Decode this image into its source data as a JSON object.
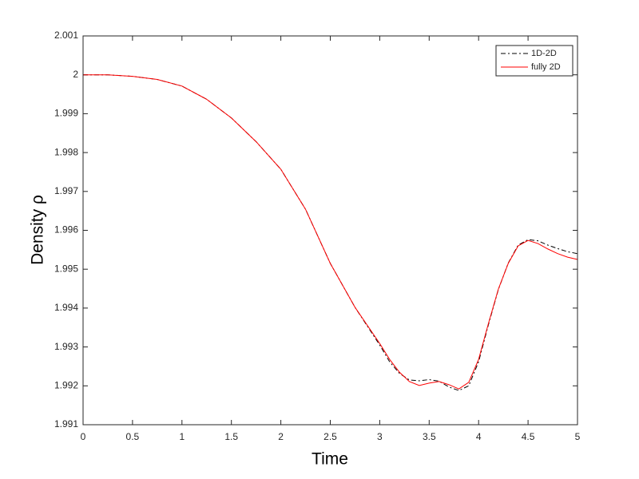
{
  "chart_data": {
    "type": "line",
    "xlabel": "Time",
    "ylabel": "Density ρ",
    "x": [
      0,
      0.25,
      0.5,
      0.75,
      1,
      1.25,
      1.5,
      1.75,
      2,
      2.25,
      2.5,
      2.75,
      3,
      3.1,
      3.2,
      3.3,
      3.4,
      3.5,
      3.6,
      3.7,
      3.8,
      3.9,
      4,
      4.1,
      4.2,
      4.3,
      4.4,
      4.5,
      4.6,
      4.7,
      4.8,
      4.9,
      5
    ],
    "series": [
      {
        "name": "1D-2D",
        "color": "#000000",
        "dash": "6,3,2,3",
        "values": [
          2.0,
          2.0,
          1.99996,
          1.99988,
          1.99971,
          1.99937,
          1.99889,
          1.99828,
          1.99757,
          1.99654,
          1.99515,
          1.99402,
          1.99305,
          1.99262,
          1.99232,
          1.99215,
          1.99213,
          1.99216,
          1.99212,
          1.99197,
          1.99188,
          1.992,
          1.99262,
          1.99358,
          1.99448,
          1.99516,
          1.99562,
          1.99576,
          1.99573,
          1.99562,
          1.99553,
          1.99545,
          1.9954
        ]
      },
      {
        "name": "fully 2D",
        "color": "#ff0000",
        "dash": "none",
        "values": [
          2.0,
          2.0,
          1.99996,
          1.99988,
          1.99971,
          1.99937,
          1.99889,
          1.99828,
          1.99757,
          1.99654,
          1.99515,
          1.99402,
          1.99309,
          1.99268,
          1.99235,
          1.99211,
          1.99201,
          1.99207,
          1.99211,
          1.99203,
          1.99192,
          1.99209,
          1.99268,
          1.99361,
          1.99449,
          1.99515,
          1.9956,
          1.99574,
          1.99566,
          1.99552,
          1.9954,
          1.99531,
          1.99525
        ]
      }
    ],
    "xlim": [
      0,
      5
    ],
    "xticks": [
      0,
      0.5,
      1,
      1.5,
      2,
      2.5,
      3,
      3.5,
      4,
      4.5,
      5
    ],
    "ylim": [
      1.991,
      2.001
    ],
    "yticks": [
      1.991,
      1.992,
      1.993,
      1.994,
      1.995,
      1.996,
      1.997,
      1.998,
      1.999,
      2,
      2.001
    ],
    "legend": "top-right"
  }
}
